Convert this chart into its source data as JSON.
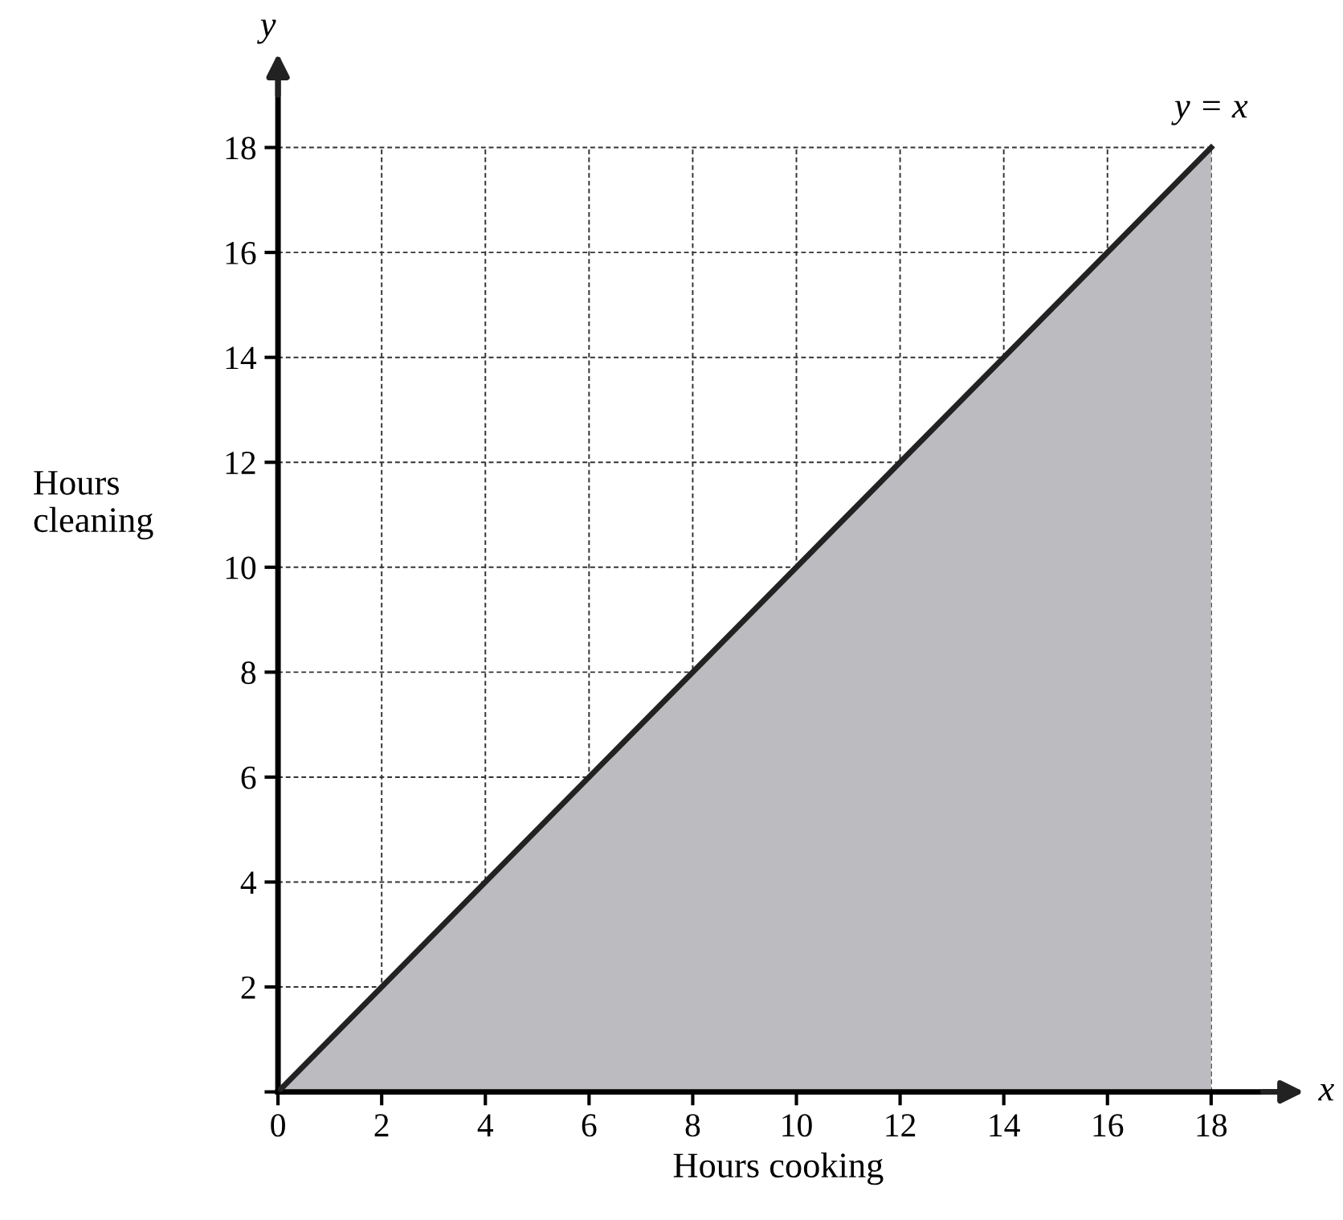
{
  "chart_data": {
    "type": "area",
    "xlabel": "Hours cooking",
    "ylabel": "Hours\ncleaning",
    "x": [
      0,
      18
    ],
    "series": [
      {
        "color": "#bcbcc0",
        "values": [
          0,
          18
        ]
      }
    ],
    "xlim": [
      0,
      19.3
    ],
    "ylim": [
      0,
      19.3
    ],
    "xticks": [
      {
        "value": 0,
        "label": "0"
      },
      2,
      4,
      6,
      8,
      10,
      12,
      14,
      16,
      18
    ],
    "yticks": [
      {
        "value": 0,
        "label": null
      },
      2,
      4,
      6,
      8,
      10,
      12,
      14,
      16,
      18
    ],
    "grid": true,
    "annotations": [
      {
        "text": "y = x",
        "x": 18,
        "y": 18
      },
      "x",
      "y"
    ]
  }
}
